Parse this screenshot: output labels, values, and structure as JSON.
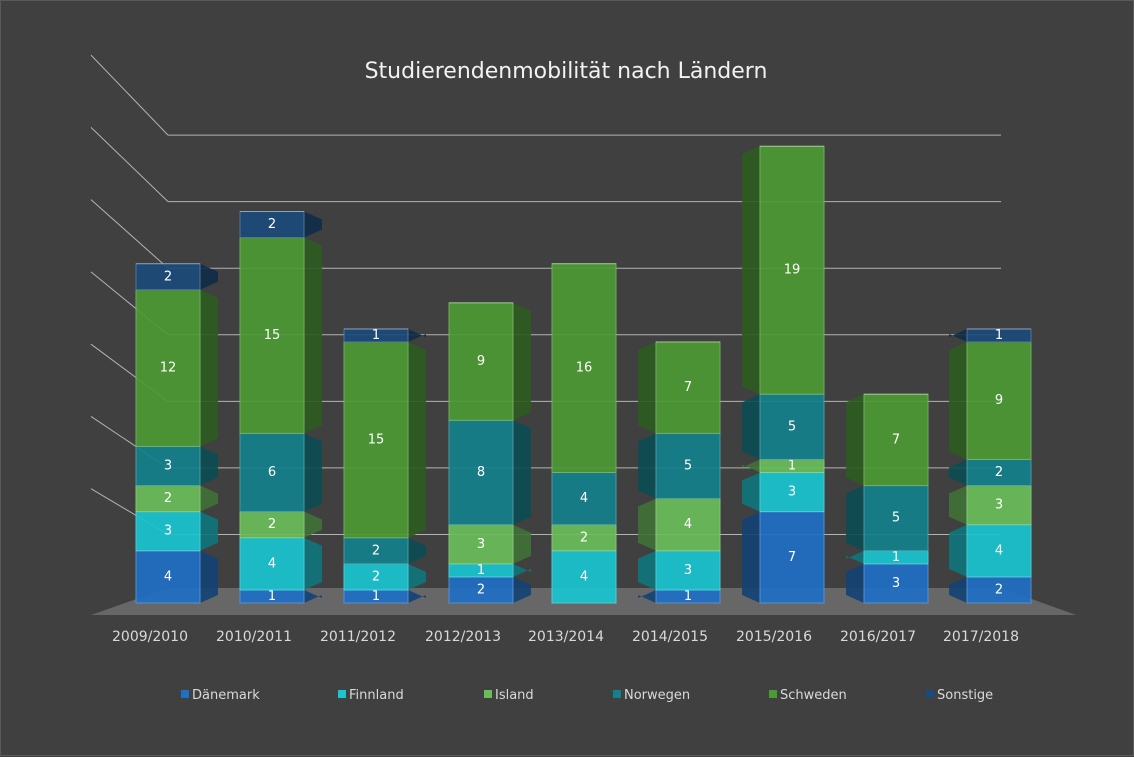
{
  "chart_data": {
    "type": "bar",
    "stacked": true,
    "style": "3d",
    "title": "Studierendenmobilität nach Ländern",
    "xlabel": "",
    "ylabel": "",
    "ylim": [
      0,
      40
    ],
    "grid": true,
    "legend_position": "bottom",
    "categories": [
      "2009/2010",
      "2010/2011",
      "2011/2012",
      "2012/2013",
      "2013/2014",
      "2014/2015",
      "2015/2016",
      "2016/2017",
      "2017/2018"
    ],
    "series": [
      {
        "name": "Dänemark",
        "color": "#1f6fc5",
        "values": [
          4,
          1,
          1,
          2,
          0,
          1,
          7,
          3,
          2
        ]
      },
      {
        "name": "Finnland",
        "color": "#18c5d0",
        "values": [
          3,
          4,
          2,
          1,
          4,
          3,
          3,
          1,
          4
        ]
      },
      {
        "name": "Island",
        "color": "#6bbd5b",
        "values": [
          2,
          2,
          0,
          3,
          2,
          4,
          1,
          0,
          3
        ]
      },
      {
        "name": "Norwegen",
        "color": "#13818a",
        "values": [
          3,
          6,
          2,
          8,
          4,
          5,
          5,
          5,
          2
        ]
      },
      {
        "name": "Schweden",
        "color": "#4c9a33",
        "values": [
          12,
          15,
          15,
          9,
          16,
          7,
          19,
          7,
          9
        ]
      },
      {
        "name": "Sonstige",
        "color": "#1c4a7a",
        "values": [
          2,
          2,
          1,
          0,
          0,
          0,
          0,
          0,
          1
        ]
      }
    ]
  },
  "colors": {
    "background": "#404040",
    "grid": "#d0d0d0",
    "floor": "#6b6b6b",
    "text": "#d9d9d9"
  }
}
